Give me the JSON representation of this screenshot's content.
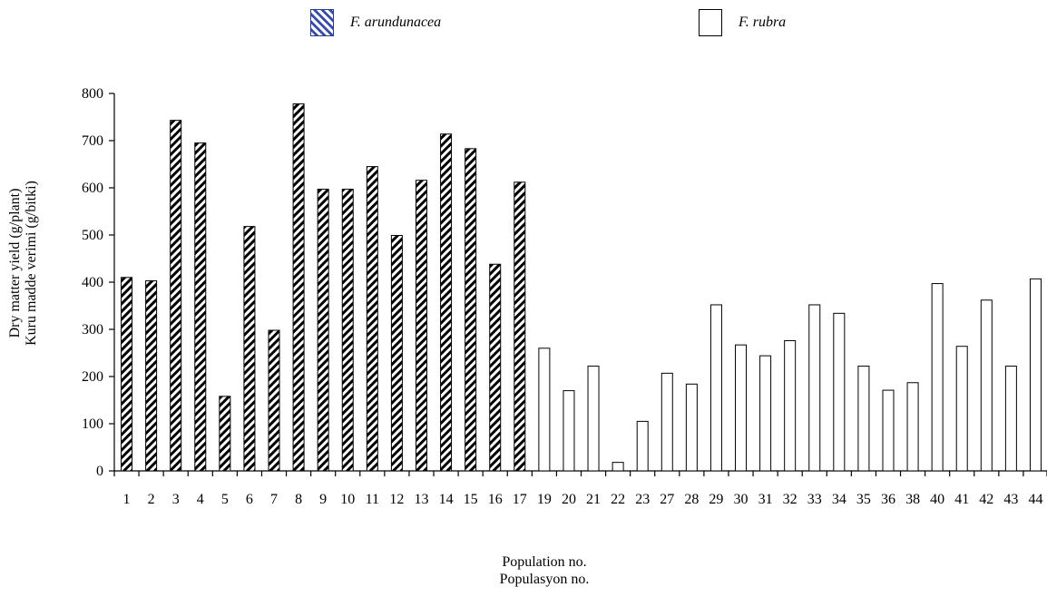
{
  "legend": [
    {
      "label": "F. arundunacea",
      "pattern": "hatch"
    },
    {
      "label": "F. rubra",
      "pattern": "plain"
    }
  ],
  "chart_data": {
    "type": "bar",
    "title": "",
    "ylabel_lines": [
      "Dry matter yield (g/plant)",
      "Kuru madde verimi (g/bitki)"
    ],
    "xlabel_lines": [
      "Population no.",
      "Populasyon no."
    ],
    "ylim": [
      0,
      800
    ],
    "yticks": [
      0,
      100,
      200,
      300,
      400,
      500,
      600,
      700,
      800
    ],
    "grid": false,
    "legend_position": "top",
    "categories": [
      "1",
      "2",
      "3",
      "4",
      "5",
      "6",
      "7",
      "8",
      "9",
      "10",
      "11",
      "12",
      "13",
      "14",
      "15",
      "16",
      "17",
      "19",
      "20",
      "21",
      "22",
      "23",
      "27",
      "28",
      "29",
      "30",
      "31",
      "32",
      "33",
      "34",
      "35",
      "36",
      "38",
      "40",
      "41",
      "42",
      "43",
      "44"
    ],
    "series": [
      {
        "name": "F. arundunacea",
        "pattern": "hatch",
        "values": [
          410,
          403,
          743,
          695,
          158,
          518,
          298,
          778,
          597,
          597,
          645,
          499,
          616,
          714,
          683,
          438,
          612,
          null,
          null,
          null,
          null,
          null,
          null,
          null,
          null,
          null,
          null,
          null,
          null,
          null,
          null,
          null,
          null,
          null,
          null,
          null,
          null,
          null
        ]
      },
      {
        "name": "F. rubra",
        "pattern": "plain",
        "values": [
          null,
          null,
          null,
          null,
          null,
          null,
          null,
          null,
          null,
          null,
          null,
          null,
          null,
          null,
          null,
          null,
          null,
          260,
          170,
          222,
          18,
          105,
          207,
          184,
          352,
          267,
          244,
          276,
          352,
          334,
          222,
          171,
          187,
          397,
          264,
          362,
          222,
          407
        ]
      }
    ],
    "colors": {
      "hatch_stroke": "#000000",
      "bar_fill": "#ffffff",
      "axis": "#000000"
    }
  }
}
